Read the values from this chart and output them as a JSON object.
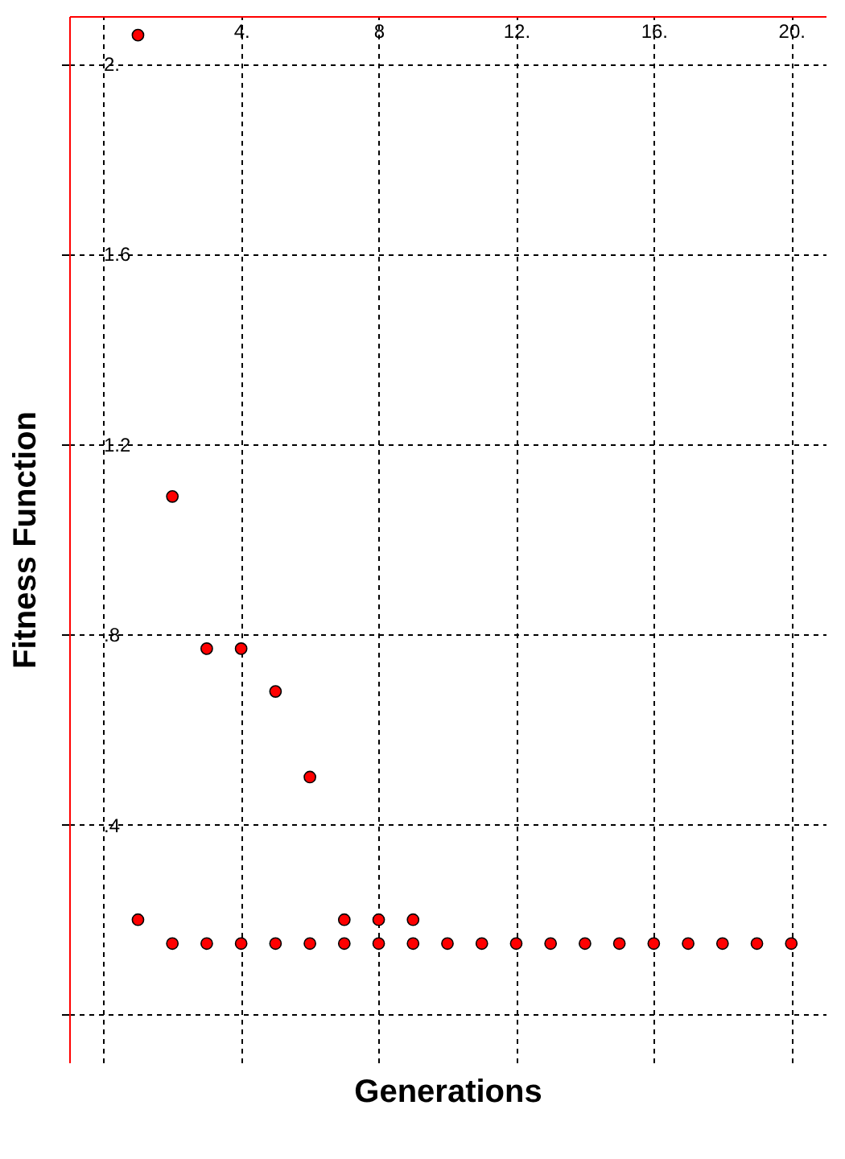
{
  "chart_data": {
    "type": "scatter",
    "xlabel": "Generations",
    "ylabel": "Fitness Function",
    "x": [
      1,
      2,
      3,
      4,
      5,
      6,
      1,
      7,
      8,
      9,
      2,
      3,
      4,
      5,
      6,
      7,
      8,
      9,
      10,
      11,
      12,
      13,
      14,
      15,
      16,
      17,
      18,
      19,
      20
    ],
    "series": [
      {
        "color": "#ff0000",
        "values": [
          2.06,
          1.09,
          0.77,
          0.77,
          0.68,
          0.5,
          0.2,
          0.2,
          0.2,
          0.2,
          0.15,
          0.15,
          0.15,
          0.15,
          0.15,
          0.15,
          0.15,
          0.15,
          0.15,
          0.15,
          0.15,
          0.15,
          0.15,
          0.15,
          0.15,
          0.15,
          0.15,
          0.15,
          0.15
        ]
      }
    ],
    "xlim": [
      -1,
      21
    ],
    "xticks": [
      {
        "value": 0,
        "label": null
      },
      {
        "value": 4,
        "label": "4."
      },
      8,
      {
        "value": 12,
        "label": "12."
      },
      {
        "value": 16,
        "label": "16."
      },
      {
        "value": 20,
        "label": "20."
      }
    ],
    "ylim": [
      -0.1,
      2.1
    ],
    "yticks": [
      {
        "value": 0,
        "label": null
      },
      {
        "value": 0.4,
        "label": ".4"
      },
      {
        "value": 0.8,
        "label": ".8"
      },
      1.2,
      1.6,
      {
        "value": 2,
        "label": "2."
      }
    ],
    "grid": true,
    "marker": "circle"
  }
}
